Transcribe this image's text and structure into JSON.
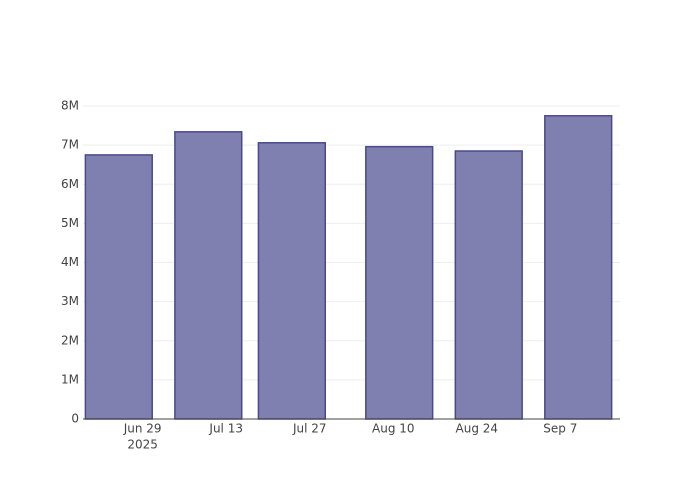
{
  "chart_data": {
    "type": "bar",
    "x": [
      "2025-06-25",
      "2025-07-10",
      "2025-07-24",
      "2025-08-11",
      "2025-08-26",
      "2025-09-10"
    ],
    "values": [
      6750000,
      7340000,
      7060000,
      6960000,
      6850000,
      7750000
    ],
    "color": "#7f7fb0",
    "edge_color": "#4a4a8a",
    "xlim": [
      "2025-06-19",
      "2025-09-17"
    ],
    "xticks": [
      {
        "value": "2025-06-29",
        "label": "Jun 29"
      },
      {
        "value": "2025-07-13",
        "label": "Jul 13"
      },
      {
        "value": "2025-07-27",
        "label": "Jul 27"
      },
      {
        "value": "2025-08-10",
        "label": "Aug 10"
      },
      {
        "value": "2025-08-24",
        "label": "Aug 24"
      },
      {
        "value": "2025-09-07",
        "label": "Sep 7"
      }
    ],
    "x_year": "2025",
    "ylim": [
      0,
      8000000
    ],
    "yticks": [
      0,
      {
        "value": 1000000,
        "label": "1M"
      },
      {
        "value": 2000000,
        "label": "2M"
      },
      {
        "value": 3000000,
        "label": "3M"
      },
      {
        "value": 4000000,
        "label": "4M"
      },
      {
        "value": 5000000,
        "label": "5M"
      },
      {
        "value": 6000000,
        "label": "6M"
      },
      {
        "value": 7000000,
        "label": "7M"
      },
      {
        "value": 8000000,
        "label": "8M"
      }
    ],
    "grid": true
  }
}
